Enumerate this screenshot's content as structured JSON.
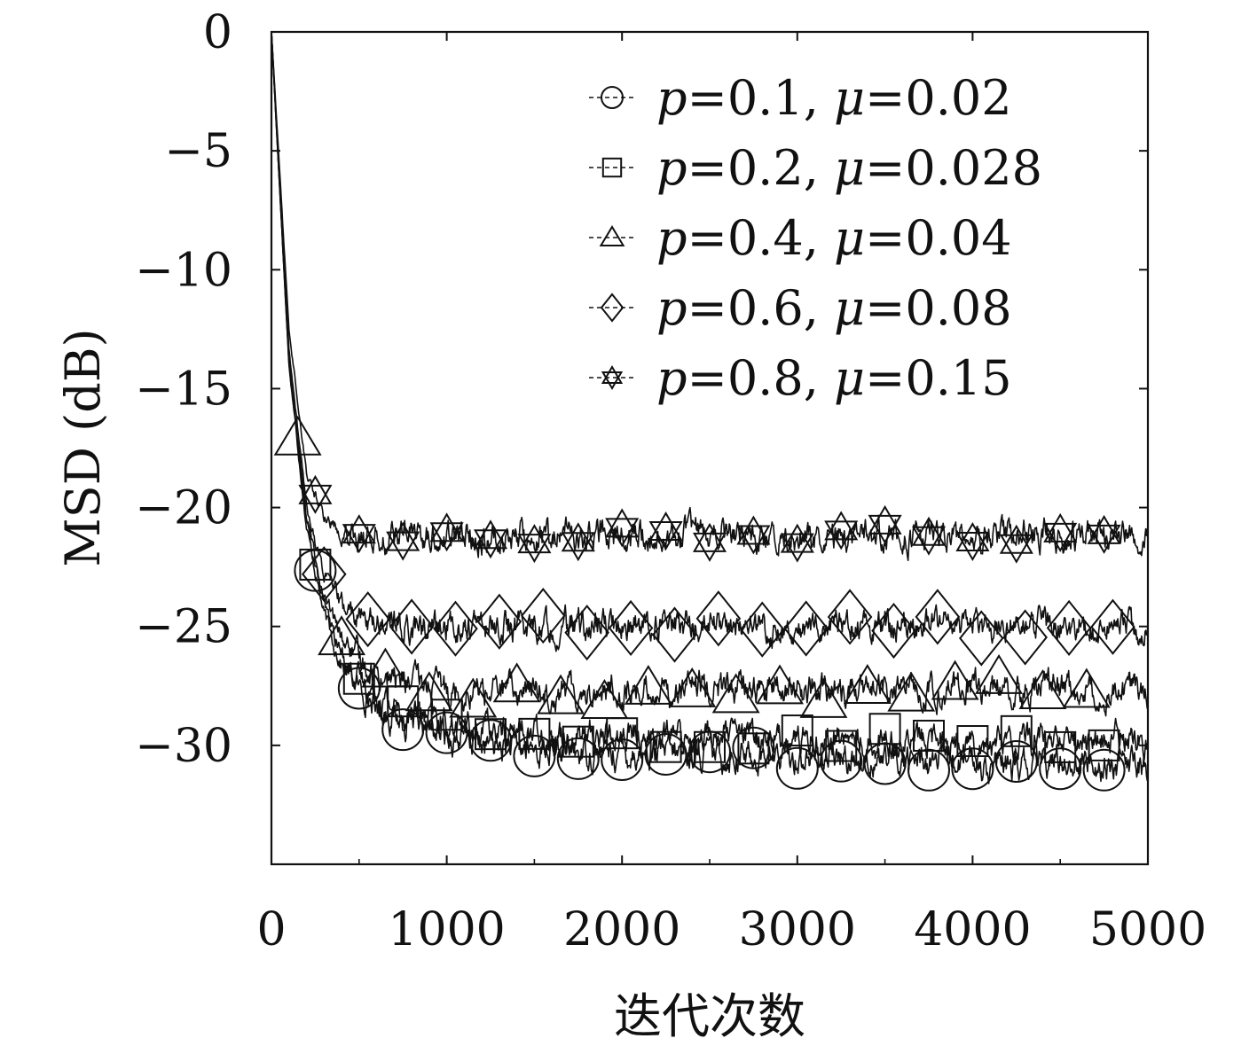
{
  "chart_data": {
    "type": "line",
    "title": "",
    "xlabel": "迭代次数",
    "ylabel": "MSD (dB)",
    "xlim": [
      0,
      5000
    ],
    "ylim": [
      -35,
      0
    ],
    "xticks": [
      0,
      1000,
      2000,
      3000,
      4000,
      5000
    ],
    "xtick_labels": [
      "0",
      "1000",
      "2000",
      "3000",
      "4000",
      "5000"
    ],
    "yticks": [
      0,
      -5,
      -10,
      -15,
      -20,
      -25,
      -30
    ],
    "ytick_labels": [
      "0",
      "−5",
      "−10",
      "−15",
      "−20",
      "−25",
      "−30"
    ],
    "grid": false,
    "legend_position": "top-right",
    "line_color": "#111111",
    "series": [
      {
        "name": "p=0.1, μ=0.02",
        "legend": {
          "p": "0.1",
          "mu": "0.02"
        },
        "marker": "circle",
        "x": [
          0,
          100,
          200,
          300,
          400,
          500,
          600,
          700,
          800,
          1000,
          1250,
          1500,
          2000,
          2500,
          3000,
          3500,
          4000,
          4250,
          4500,
          5000
        ],
        "y": [
          0,
          -14,
          -20.8,
          -24.5,
          -26.6,
          -27.6,
          -28.3,
          -28.8,
          -29.1,
          -29.6,
          -30.0,
          -30.2,
          -30.3,
          -30.4,
          -30.5,
          -30.6,
          -30.7,
          -31.0,
          -30.6,
          -30.9
        ]
      },
      {
        "name": "p=0.2, μ=0.028",
        "legend": {
          "p": "0.2",
          "mu": "0.028"
        },
        "marker": "square",
        "x": [
          0,
          100,
          200,
          300,
          400,
          500,
          600,
          700,
          800,
          1000,
          1250,
          1500,
          2000,
          2500,
          3000,
          3500,
          4000,
          4500,
          5000
        ],
        "y": [
          0,
          -14,
          -20.6,
          -24.2,
          -26.2,
          -27.2,
          -27.9,
          -28.4,
          -28.7,
          -29.1,
          -29.4,
          -29.5,
          -29.6,
          -29.6,
          -29.7,
          -29.8,
          -29.8,
          -29.8,
          -29.8
        ]
      },
      {
        "name": "p=0.4, μ=0.04",
        "legend": {
          "p": "0.4",
          "mu": "0.04"
        },
        "marker": "triangle",
        "x": [
          0,
          100,
          200,
          300,
          400,
          500,
          600,
          700,
          800,
          1000,
          1250,
          1500,
          2000,
          2500,
          3000,
          3500,
          4000,
          4500,
          5000
        ],
        "y": [
          0,
          -13.8,
          -20.4,
          -23.8,
          -25.5,
          -26.4,
          -26.9,
          -27.2,
          -27.4,
          -27.6,
          -27.7,
          -27.7,
          -27.7,
          -27.6,
          -27.7,
          -27.7,
          -27.6,
          -27.6,
          -27.6
        ]
      },
      {
        "name": "p=0.6, μ=0.08",
        "legend": {
          "p": "0.6",
          "mu": "0.08"
        },
        "marker": "diamond",
        "x": [
          0,
          100,
          200,
          300,
          400,
          500,
          600,
          700,
          800,
          1000,
          1250,
          1500,
          2000,
          2500,
          3000,
          3500,
          4000,
          4500,
          5000
        ],
        "y": [
          0,
          -13.4,
          -20.0,
          -22.8,
          -24.1,
          -24.6,
          -24.8,
          -24.9,
          -25.0,
          -25.0,
          -25.0,
          -25.0,
          -25.0,
          -25.0,
          -25.0,
          -25.0,
          -25.0,
          -25.0,
          -25.0
        ]
      },
      {
        "name": "p=0.8, μ=0.15",
        "legend": {
          "p": "0.8",
          "mu": "0.15"
        },
        "marker": "star",
        "x": [
          0,
          100,
          200,
          300,
          400,
          500,
          600,
          700,
          800,
          1000,
          1250,
          1500,
          2000,
          2500,
          3000,
          3500,
          4000,
          4500,
          5000
        ],
        "y": [
          0,
          -12.5,
          -18.5,
          -20.4,
          -20.9,
          -21.1,
          -21.2,
          -21.2,
          -21.2,
          -21.2,
          -21.2,
          -21.2,
          -21.2,
          -21.2,
          -21.2,
          -21.2,
          -21.2,
          -21.1,
          -21.3
        ]
      }
    ]
  }
}
